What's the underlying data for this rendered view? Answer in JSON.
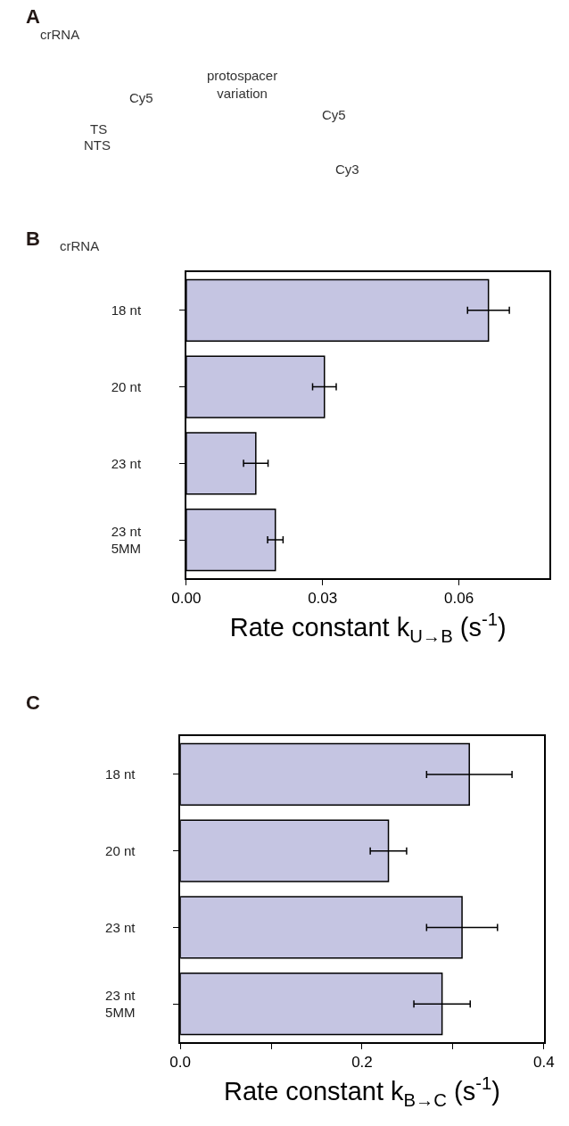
{
  "chart_data": [
    {
      "type": "other",
      "annotations": [
        "A",
        "crRNA",
        "protospacer\nvariation",
        "Cy5",
        "Cy5",
        "TS",
        "NTS",
        "Cy3"
      ]
    },
    {
      "type": "bar",
      "orientation": "horizontal",
      "ylabel": "crRNA",
      "xlabel": "Rate constant k$_{U→B}$ (s$^{-1}$)",
      "annotations": [
        "B"
      ],
      "categories": [
        "18 nt",
        "20 nt",
        "23 nt",
        "23 nt\n5MM"
      ],
      "series": [
        {
          "color": "#c5c5e2",
          "values": [
            0.0665,
            0.0304,
            0.0153,
            0.0196
          ],
          "errors": [
            0.0046,
            0.0026,
            0.0027,
            0.0017
          ]
        }
      ],
      "xlim": [
        0,
        0.08
      ],
      "xticks": [
        {
          "value": 0,
          "label": "0.00"
        },
        {
          "value": 0.03,
          "label": "0.03"
        },
        {
          "value": 0.06,
          "label": "0.06"
        }
      ]
    },
    {
      "type": "bar",
      "orientation": "horizontal",
      "xlabel": "Rate constant k$_{B→C}$ (s$^{-1}$)",
      "annotations": [
        "C"
      ],
      "categories": [
        "18 nt",
        "20 nt",
        "23 nt",
        "23 nt\n5MM"
      ],
      "series": [
        {
          "color": "#c5c5e2",
          "values": [
            0.318,
            0.229,
            0.31,
            0.288
          ],
          "errors": [
            0.047,
            0.02,
            0.039,
            0.031
          ]
        }
      ],
      "xlim": [
        0,
        0.4
      ],
      "xticks": [
        {
          "value": 0,
          "label": "0.0"
        },
        {
          "value": 0.1,
          "label": null
        },
        {
          "value": 0.2,
          "label": "0.2"
        },
        {
          "value": 0.3,
          "label": null
        },
        {
          "value": 0.4,
          "label": "0.4"
        }
      ]
    }
  ]
}
